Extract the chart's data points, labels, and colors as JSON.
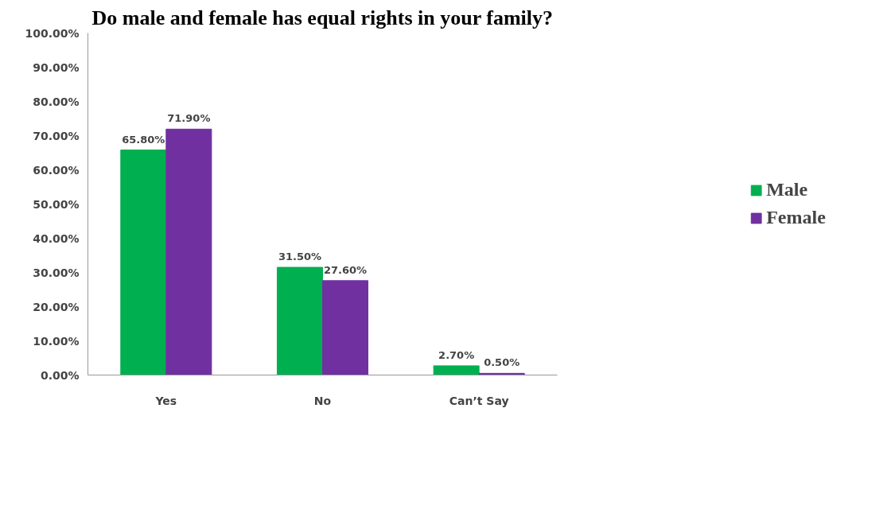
{
  "chart_data": {
    "type": "bar",
    "title": "Do male and female has equal rights in your family?",
    "categories": [
      "Yes",
      "No",
      "Can’t Say"
    ],
    "series": [
      {
        "name": "Male",
        "color": "#00b050",
        "values": [
          65.8,
          31.5,
          2.7
        ],
        "value_labels": [
          "65.80%",
          "31.50%",
          "2.70%"
        ]
      },
      {
        "name": "Female",
        "color": "#7030a0",
        "values": [
          71.9,
          27.6,
          0.5
        ],
        "value_labels": [
          "71.90%",
          "27.60%",
          "0.50%"
        ]
      }
    ],
    "ylim": [
      0,
      100
    ],
    "yticks": [
      {
        "value": 0,
        "label": "0.00%"
      },
      {
        "value": 10,
        "label": "10.00%"
      },
      {
        "value": 20,
        "label": "20.00%"
      },
      {
        "value": 30,
        "label": "30.00%"
      },
      {
        "value": 40,
        "label": "40.00%"
      },
      {
        "value": 50,
        "label": "50.00%"
      },
      {
        "value": 60,
        "label": "60.00%"
      },
      {
        "value": 70,
        "label": "70.00%"
      },
      {
        "value": 80,
        "label": "80.00%"
      },
      {
        "value": 90,
        "label": "90.00%"
      },
      {
        "value": 100,
        "label": "100.00%"
      }
    ],
    "grid": false,
    "legend": "right"
  }
}
